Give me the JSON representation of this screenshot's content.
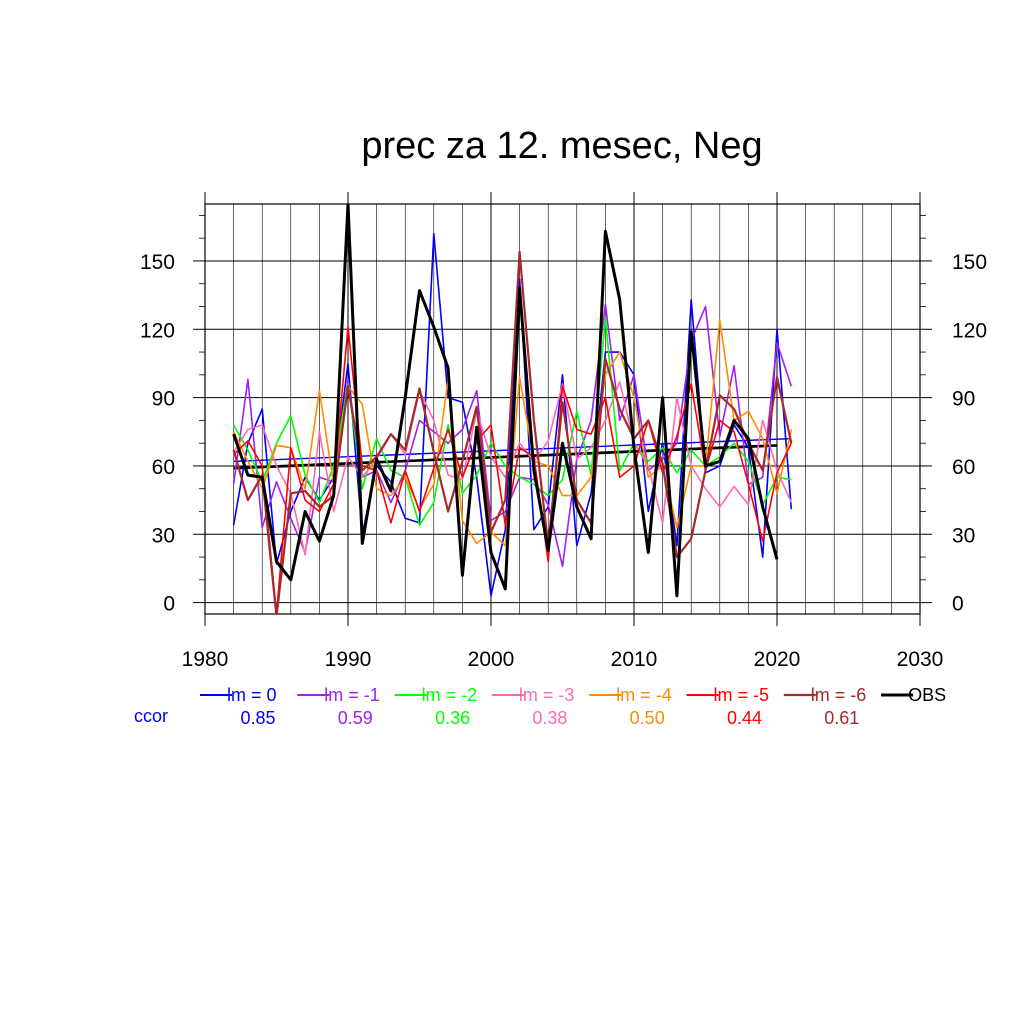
{
  "chart_data": {
    "type": "line",
    "title": "prec za 12. mesec, Neg",
    "xlabel": "",
    "ylabel": "",
    "xlim": [
      1980,
      2030
    ],
    "ylim": [
      -5,
      175
    ],
    "x_ticks": [
      1980,
      1990,
      2000,
      2010,
      2020,
      2030
    ],
    "y_ticks": [
      0,
      30,
      60,
      90,
      120,
      150
    ],
    "grid": true,
    "legend_position": "bottom",
    "ccor_label": "ccor",
    "ccor_color": "#0000ff",
    "x": [
      1982,
      1983,
      1984,
      1985,
      1986,
      1987,
      1988,
      1989,
      1990,
      1991,
      1992,
      1993,
      1994,
      1995,
      1996,
      1997,
      1998,
      1999,
      2000,
      2001,
      2002,
      2003,
      2004,
      2005,
      2006,
      2007,
      2008,
      2009,
      2010,
      2011,
      2012,
      2013,
      2014,
      2015,
      2016,
      2017,
      2018,
      2019,
      2020,
      2021
    ],
    "series": [
      {
        "name": "lm = 0",
        "color": "#0000ff",
        "ccor": "0.85",
        "width": 1.6,
        "values": [
          34,
          70,
          85,
          17,
          40,
          55,
          45,
          55,
          105,
          30,
          60,
          53,
          37,
          35,
          162,
          90,
          88,
          55,
          3,
          32,
          142,
          32,
          42,
          100,
          25,
          48,
          110,
          110,
          100,
          40,
          70,
          25,
          133,
          57,
          60,
          78,
          68,
          20,
          120,
          41
        ],
        "trend": [
          62,
          72
        ]
      },
      {
        "name": "lm = -1",
        "color": "#a020f0",
        "ccor": "0.59",
        "width": 1.6,
        "values": [
          52,
          98,
          33,
          53,
          37,
          22,
          55,
          53,
          98,
          55,
          58,
          44,
          58,
          80,
          75,
          70,
          76,
          93,
          36,
          40,
          55,
          54,
          43,
          16,
          63,
          80,
          131,
          80,
          100,
          58,
          63,
          70,
          115,
          130,
          73,
          104,
          52,
          55,
          114,
          95
        ],
        "trend": null
      },
      {
        "name": "lm = -2",
        "color": "#00ff00",
        "ccor": "0.36",
        "width": 1.6,
        "values": [
          78,
          67,
          53,
          70,
          82,
          56,
          44,
          60,
          96,
          50,
          72,
          58,
          55,
          34,
          44,
          78,
          48,
          56,
          70,
          60,
          55,
          52,
          47,
          54,
          84,
          56,
          125,
          58,
          70,
          62,
          68,
          57,
          67,
          60,
          64,
          70,
          62,
          43,
          55,
          54
        ],
        "trend": null
      },
      {
        "name": "lm = -3",
        "color": "#ff69b4",
        "ccor": "0.38",
        "width": 1.6,
        "values": [
          66,
          76,
          78,
          60,
          48,
          21,
          75,
          40,
          64,
          55,
          63,
          74,
          65,
          93,
          80,
          56,
          54,
          84,
          64,
          55,
          70,
          62,
          71,
          96,
          63,
          68,
          80,
          97,
          70,
          60,
          35,
          90,
          60,
          50,
          42,
          51,
          43,
          80,
          58,
          44
        ],
        "trend": null
      },
      {
        "name": "lm = -4",
        "color": "#ff8c00",
        "ccor": "0.50",
        "width": 1.6,
        "values": [
          75,
          62,
          50,
          69,
          68,
          50,
          93,
          52,
          95,
          87,
          50,
          47,
          55,
          41,
          52,
          98,
          36,
          26,
          31,
          25,
          99,
          62,
          60,
          47,
          47,
          55,
          100,
          110,
          90,
          55,
          60,
          33,
          60,
          60,
          124,
          80,
          84,
          72,
          48,
          76
        ],
        "trend": null
      },
      {
        "name": "lm = -5",
        "color": "#ff0000",
        "ccor": "0.44",
        "width": 1.6,
        "values": [
          65,
          71,
          60,
          -5,
          68,
          45,
          40,
          52,
          121,
          60,
          58,
          35,
          58,
          40,
          59,
          76,
          55,
          71,
          78,
          34,
          68,
          64,
          18,
          95,
          76,
          74,
          90,
          55,
          60,
          80,
          57,
          73,
          96,
          58,
          80,
          75,
          52,
          27,
          57,
          70
        ],
        "trend": null
      },
      {
        "name": "lm = -6",
        "color": "#a52a2a",
        "ccor": "0.61",
        "width": 2.2,
        "values": [
          67,
          45,
          56,
          -6,
          48,
          49,
          42,
          47,
          95,
          58,
          64,
          74,
          67,
          94,
          66,
          40,
          62,
          86,
          31,
          45,
          154,
          80,
          25,
          88,
          45,
          35,
          107,
          85,
          72,
          80,
          61,
          20,
          28,
          58,
          91,
          85,
          70,
          58,
          99,
          70
        ],
        "trend": null
      },
      {
        "name": "OBS",
        "color": "#000000",
        "ccor": "",
        "width": 3.0,
        "values": [
          74,
          56,
          55,
          18,
          10,
          40,
          27,
          47,
          175,
          26,
          63,
          49,
          90,
          137,
          121,
          103,
          12,
          77,
          22,
          6,
          138,
          58,
          23,
          70,
          42,
          28,
          163,
          133,
          68,
          22,
          90,
          3,
          119,
          60,
          62,
          80,
          72,
          42,
          19,
          null
        ],
        "trend": [
          59,
          69
        ]
      }
    ]
  }
}
